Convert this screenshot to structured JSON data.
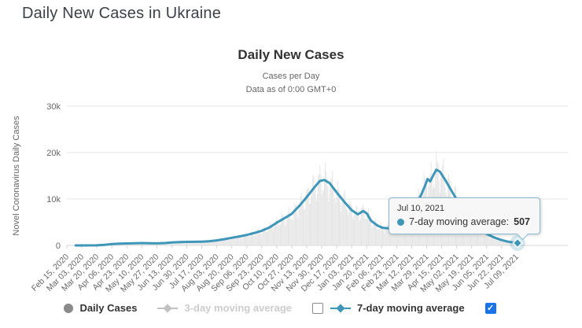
{
  "page": {
    "title": "Daily New Cases in Ukraine"
  },
  "chart": {
    "title": "Daily New Cases",
    "subtitle_line1": "Cases per Day",
    "subtitle_line2": "Data as of 0:00 GMT+0",
    "colors": {
      "page_title": "#3c4048",
      "title": "#333333",
      "subtitle": "#666666",
      "tick_text": "#666666",
      "grid": "#e6e6e6",
      "axis": "#d4d4d4",
      "line": "#3e96b8",
      "bars": "#e4e4e4",
      "tooltip_bg": "#f7f7f7",
      "tooltip_border": "#86b8d2",
      "legend_text": "#333333",
      "legend_disabled": "#cccccc",
      "legend_circle": "#8a8a8a",
      "legend_gray_marker": "#c2c2c2",
      "checkbox_checked": "#1a73e8"
    },
    "tooltip": {
      "date": "Jul 10, 2021",
      "label": "7-day moving average:",
      "value": "507"
    },
    "legend": {
      "items": [
        {
          "label": "Daily Cases",
          "marker": "circle",
          "disabled": false
        },
        {
          "label": "3-day moving average",
          "marker": "diamond-line",
          "disabled": true
        },
        {
          "label": "7-day moving average",
          "marker": "diamond-line",
          "disabled": false
        }
      ],
      "checkbox_before_7day": "unchecked",
      "checkbox_after_7day": "checked",
      "checkmark": "✓"
    }
  },
  "chart_data": {
    "type": "line",
    "title": "Daily New Cases",
    "subtitle": [
      "Cases per Day",
      "Data as of 0:00 GMT+0"
    ],
    "ylabel": "Novel Coronavirus Daily Cases",
    "xlabel": "",
    "ylim": [
      0,
      30000
    ],
    "grid": "horizontal",
    "legend_position": "bottom",
    "x_start": "Feb 15, 2020",
    "x_end": "Jul 10, 2021",
    "total_days": 511,
    "x_tick_interval_days": 17,
    "x_tick_labels": [
      "Feb 15, 2020",
      "Mar 03, 2020",
      "Mar 20, 2020",
      "Apr 06, 2020",
      "Apr 23, 2020",
      "May 10, 2020",
      "May 27, 2020",
      "Jun 13, 2020",
      "Jun 30, 2020",
      "Jul 17, 2020",
      "Aug 03, 2020",
      "Aug 20, 2020",
      "Sep 06, 2020",
      "Sep 23, 2020",
      "Oct 10, 2020",
      "Oct 27, 2020",
      "Nov 13, 2020",
      "Nov 30, 2020",
      "Dec 17, 2020",
      "Jan 03, 2021",
      "Jan 20, 2021",
      "Feb 06, 2021",
      "Feb 23, 2021",
      "Mar 12, 2021",
      "Mar 29, 2021",
      "Apr 15, 2021",
      "May 02, 2021",
      "May 19, 2021",
      "Jun 05, 2021",
      "Jun 22, 2021",
      "Jul 09, 2021"
    ],
    "y_ticks": [
      {
        "value": 0,
        "label": "0"
      },
      {
        "value": 10000,
        "label": "10k"
      },
      {
        "value": 20000,
        "label": "20k"
      },
      {
        "value": 30000,
        "label": "30k"
      }
    ],
    "series": [
      {
        "name": "Daily Cases",
        "type": "bar",
        "render": "derived-from-moving-average",
        "weekly_amplitude": 0.22,
        "noise_amplitude": 0.08
      },
      {
        "name": "7-day moving average",
        "type": "line",
        "points_day_value": [
          [
            10,
            1
          ],
          [
            17,
            2
          ],
          [
            34,
            16
          ],
          [
            43,
            135
          ],
          [
            51,
            280
          ],
          [
            60,
            390
          ],
          [
            68,
            430
          ],
          [
            77,
            480
          ],
          [
            85,
            505
          ],
          [
            94,
            465
          ],
          [
            102,
            445
          ],
          [
            111,
            510
          ],
          [
            119,
            630
          ],
          [
            128,
            720
          ],
          [
            136,
            755
          ],
          [
            145,
            780
          ],
          [
            153,
            810
          ],
          [
            162,
            910
          ],
          [
            170,
            1080
          ],
          [
            179,
            1350
          ],
          [
            187,
            1650
          ],
          [
            196,
            1950
          ],
          [
            204,
            2260
          ],
          [
            213,
            2700
          ],
          [
            221,
            3150
          ],
          [
            230,
            3900
          ],
          [
            238,
            4900
          ],
          [
            247,
            5900
          ],
          [
            255,
            6800
          ],
          [
            264,
            8600
          ],
          [
            272,
            10400
          ],
          [
            281,
            12600
          ],
          [
            287,
            13900
          ],
          [
            292,
            14100
          ],
          [
            298,
            13400
          ],
          [
            306,
            11400
          ],
          [
            315,
            9300
          ],
          [
            323,
            7600
          ],
          [
            330,
            6700
          ],
          [
            336,
            7400
          ],
          [
            340,
            6900
          ],
          [
            345,
            5300
          ],
          [
            352,
            4300
          ],
          [
            358,
            3800
          ],
          [
            364,
            3700
          ],
          [
            371,
            4000
          ],
          [
            379,
            4800
          ],
          [
            387,
            6300
          ],
          [
            394,
            8300
          ],
          [
            401,
            10600
          ],
          [
            406,
            12800
          ],
          [
            409,
            14300
          ],
          [
            412,
            13800
          ],
          [
            416,
            15300
          ],
          [
            419,
            16300
          ],
          [
            423,
            15900
          ],
          [
            430,
            13800
          ],
          [
            437,
            11500
          ],
          [
            444,
            9300
          ],
          [
            451,
            6900
          ],
          [
            458,
            5200
          ],
          [
            465,
            3900
          ],
          [
            472,
            2900
          ],
          [
            479,
            2200
          ],
          [
            486,
            1600
          ],
          [
            493,
            1150
          ],
          [
            500,
            820
          ],
          [
            506,
            640
          ],
          [
            511,
            507
          ]
        ]
      },
      {
        "name": "3-day moving average",
        "type": "line",
        "hidden": true
      }
    ],
    "highlight_point": {
      "series": "7-day moving average",
      "date": "Jul 10, 2021",
      "day": 511,
      "value": 507
    }
  }
}
